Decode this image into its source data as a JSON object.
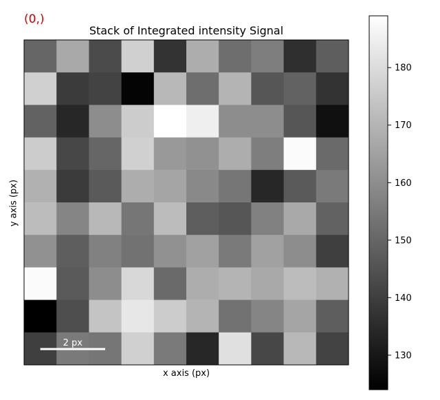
{
  "index_label": "(0,)",
  "chart_data": {
    "type": "heatmap",
    "title": "Stack of Integrated intensity Signal",
    "xlabel": "x axis (px)",
    "ylabel": "y axis (px)",
    "colormap": "gray",
    "colorbar": {
      "range": [
        124,
        189
      ],
      "ticks": [
        130,
        140,
        150,
        160,
        170,
        180
      ],
      "tick_labels": [
        "130",
        "140",
        "150",
        "160",
        "170",
        "180"
      ]
    },
    "scalebar": {
      "label": "2 px",
      "length": 2
    },
    "grid_size": [
      10,
      10
    ],
    "values": [
      [
        150,
        167,
        143,
        177,
        137,
        168,
        152,
        156,
        136,
        148
      ],
      [
        177,
        139,
        141,
        125,
        171,
        152,
        170,
        146,
        149,
        137
      ],
      [
        149,
        134,
        160,
        176,
        189,
        185,
        160,
        160,
        146,
        128
      ],
      [
        176,
        142,
        150,
        177,
        163,
        161,
        168,
        156,
        188,
        151
      ],
      [
        169,
        139,
        147,
        168,
        166,
        159,
        154,
        134,
        147,
        155
      ],
      [
        172,
        158,
        171,
        154,
        172,
        148,
        146,
        157,
        167,
        149
      ],
      [
        161,
        148,
        157,
        153,
        161,
        165,
        155,
        165,
        160,
        140
      ],
      [
        188,
        147,
        160,
        179,
        151,
        168,
        170,
        167,
        172,
        169
      ],
      [
        124,
        144,
        174,
        183,
        176,
        170,
        153,
        158,
        166,
        148
      ],
      [
        140,
        155,
        154,
        177,
        155,
        134,
        181,
        142,
        171,
        141
      ]
    ]
  }
}
